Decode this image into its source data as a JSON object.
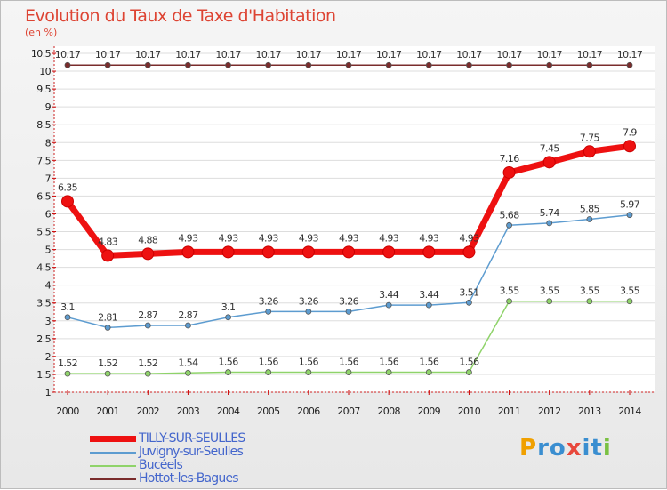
{
  "title": "Evolution du Taux de Taxe d'Habitation",
  "unit": "(en %)",
  "logo": {
    "letters": [
      "P",
      "r",
      "o",
      "x",
      "i",
      "t",
      "i"
    ],
    "colors": [
      "#f0a000",
      "#3a8ed0",
      "#3a8ed0",
      "#e8483c",
      "#3a8ed0",
      "#3a8ed0",
      "#7ac143"
    ]
  },
  "chart_data": {
    "type": "line",
    "title": "Evolution du Taux de Taxe d'Habitation",
    "ylabel": "(en %)",
    "xlabel": "",
    "ylim": [
      1,
      10.5
    ],
    "yticks": [
      "1",
      "1.5",
      "2",
      "2.5",
      "3",
      "3.5",
      "4",
      "4.5",
      "5",
      "5.5",
      "6",
      "6.5",
      "7",
      "7.5",
      "8",
      "8.5",
      "9",
      "9.5",
      "10",
      "10.5"
    ],
    "x": [
      "2000",
      "2001",
      "2002",
      "2003",
      "2004",
      "2005",
      "2006",
      "2007",
      "2008",
      "2009",
      "2010",
      "2011",
      "2012",
      "2013",
      "2014"
    ],
    "series": [
      {
        "name": "Hottot-les-Bagues",
        "color": "#7a2c2c",
        "values": [
          10.17,
          10.17,
          10.17,
          10.17,
          10.17,
          10.17,
          10.17,
          10.17,
          10.17,
          10.17,
          10.17,
          10.17,
          10.17,
          10.17,
          10.17
        ],
        "labels": [
          "10.17",
          "10.17",
          "10.17",
          "10.17",
          "10.17",
          "10.17",
          "10.17",
          "10.17",
          "10.17",
          "10.17",
          "10.17",
          "10.17",
          "10.17",
          "10.17",
          "10.17"
        ]
      },
      {
        "name": "Juvigny-sur-Seulles",
        "color": "#5d9cd0",
        "values": [
          3.1,
          2.81,
          2.87,
          2.87,
          3.1,
          3.26,
          3.26,
          3.26,
          3.44,
          3.44,
          3.51,
          5.68,
          5.74,
          5.85,
          5.97
        ],
        "labels": [
          "3.1",
          "2.81",
          "2.87",
          "2.87",
          "3.1",
          "3.26",
          "3.26",
          "3.26",
          "3.44",
          "3.44",
          "3.51",
          "5.68",
          "5.74",
          "5.85",
          "5.97"
        ]
      },
      {
        "name": "Bucéels",
        "color": "#8fd36a",
        "values": [
          1.52,
          1.52,
          1.52,
          1.54,
          1.56,
          1.56,
          1.56,
          1.56,
          1.56,
          1.56,
          1.56,
          3.55,
          3.55,
          3.55,
          3.55
        ],
        "labels": [
          "1.52",
          "1.52",
          "1.52",
          "1.54",
          "1.56",
          "1.56",
          "1.56",
          "1.56",
          "1.56",
          "1.56",
          "1.56",
          "3.55",
          "3.55",
          "3.55",
          "3.55"
        ]
      },
      {
        "name": "TILLY-SUR-SEULLES",
        "color": "#ee1111",
        "values": [
          6.35,
          4.83,
          4.88,
          4.93,
          4.93,
          4.93,
          4.93,
          4.93,
          4.93,
          4.93,
          4.93,
          7.16,
          7.45,
          7.75,
          7.9
        ],
        "labels": [
          "6.35",
          "4.83",
          "4.88",
          "4.93",
          "4.93",
          "4.93",
          "4.93",
          "4.93",
          "4.93",
          "4.93",
          "4.93",
          "7.16",
          "7.45",
          "7.75",
          "7.9"
        ]
      }
    ],
    "legend": [
      {
        "name": "TILLY-SUR-SEULLES",
        "color": "#ee1111",
        "text_color": "#4466cc"
      },
      {
        "name": "Juvigny-sur-Seulles",
        "color": "#5d9cd0",
        "text_color": "#4466cc"
      },
      {
        "name": "Bucéels",
        "color": "#8fd36a",
        "text_color": "#4466cc"
      },
      {
        "name": "Hottot-les-Bagues",
        "color": "#7a2c2c",
        "text_color": "#4466cc"
      }
    ]
  }
}
